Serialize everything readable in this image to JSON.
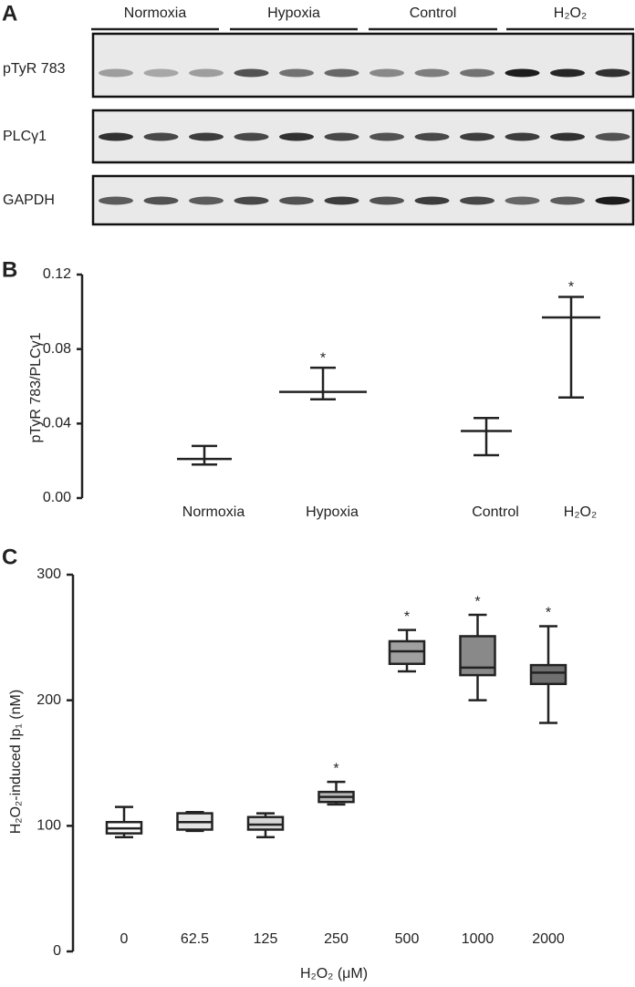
{
  "blot": {
    "label": "A",
    "groups": [
      "Normoxia",
      "Hypoxia",
      "Control",
      "H₂O₂"
    ],
    "rows": [
      "pTyR 783",
      "PLCγ1",
      "GAPDH"
    ]
  },
  "chart_data": [
    {
      "type": "errorbar",
      "label": "B",
      "ylabel": "pTyR 783/PLCγ1",
      "categories": [
        "Normoxia",
        "Hypoxia",
        "Control",
        "H₂O₂"
      ],
      "mean": [
        0.021,
        0.057,
        0.036,
        0.097
      ],
      "low": [
        0.018,
        0.053,
        0.023,
        0.054
      ],
      "high": [
        0.028,
        0.07,
        0.043,
        0.108
      ],
      "markers": [
        null,
        "*",
        null,
        "*"
      ],
      "ylim": [
        0,
        0.12
      ],
      "yticks": [
        {
          "value": 0,
          "label": "0.00"
        },
        0.04,
        0.08,
        0.12
      ],
      "color": "#222222"
    },
    {
      "type": "box",
      "label": "C",
      "ylabel": "H₂O₂-induced Ip₁ (nM)",
      "xlabel": "H₂O₂ (μM)",
      "categories": [
        "0",
        "62.5",
        "125",
        "250",
        "500",
        "1000",
        "2000"
      ],
      "min": [
        91,
        96,
        91,
        117,
        223,
        200,
        182
      ],
      "q1": [
        94,
        97,
        97,
        119,
        229,
        220,
        213
      ],
      "median": [
        98,
        103,
        101,
        123,
        239,
        226,
        222
      ],
      "q3": [
        103,
        110,
        107,
        127,
        247,
        251,
        228
      ],
      "max": [
        115,
        111,
        110,
        135,
        256,
        268,
        259
      ],
      "colors": [
        "#ffffff",
        "#e4e4e4",
        "#d6d6d6",
        "#bababa",
        "#a0a0a0",
        "#898989",
        "#6f6f6f"
      ],
      "markers": [
        null,
        null,
        null,
        "*",
        "*",
        "*",
        "*"
      ],
      "ylim": [
        0,
        300
      ],
      "yticks": [
        0,
        100,
        200,
        300
      ]
    }
  ]
}
